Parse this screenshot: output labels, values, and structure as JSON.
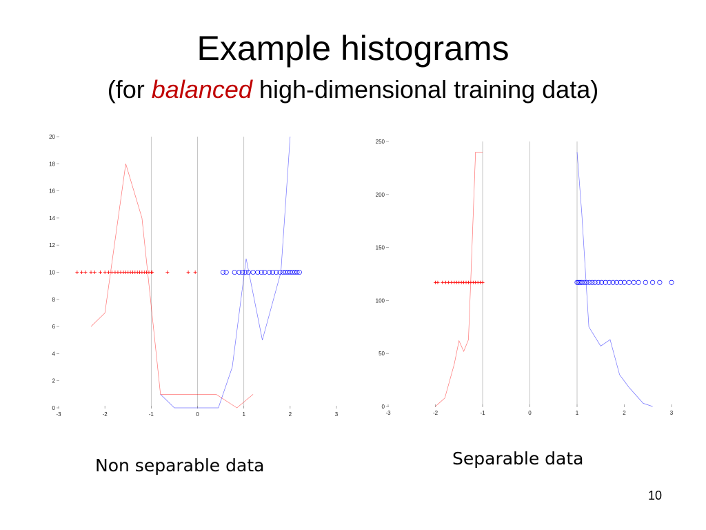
{
  "slide": {
    "title": "Example histograms",
    "subtitle_open": "(for ",
    "subtitle_emph": "balanced",
    "subtitle_rest": " high-dimensional training data)",
    "page_number": "10"
  },
  "captions": {
    "left": "Non separable data",
    "right": "Separable data"
  },
  "colors": {
    "red": "#ff0000",
    "blue": "#0000ff",
    "axis": "#888888"
  },
  "chart_data": [
    {
      "type": "line",
      "title": "",
      "xlabel": "",
      "ylabel": "",
      "xlim": [
        -3,
        3
      ],
      "ylim": [
        0,
        20
      ],
      "xticks": [
        -3,
        -2,
        -1,
        0,
        1,
        2,
        3
      ],
      "yticks": [
        0,
        2,
        4,
        6,
        8,
        10,
        12,
        14,
        16,
        18,
        20
      ],
      "vlines": [
        -1,
        0,
        1
      ],
      "series": [
        {
          "color": "red",
          "x": [
            -2.3,
            -2.0,
            -1.55,
            -1.2,
            -0.8,
            -0.4,
            0.0,
            0.4,
            0.85,
            1.2
          ],
          "y": [
            6,
            7,
            18,
            14,
            1,
            1,
            1,
            1,
            0,
            1
          ]
        },
        {
          "color": "blue",
          "x": [
            -0.8,
            -0.5,
            0.0,
            0.45,
            0.75,
            1.05,
            1.4,
            1.8,
            2.0
          ],
          "y": [
            1,
            0,
            0,
            0,
            3,
            11,
            5,
            10,
            20
          ]
        }
      ],
      "points_y": 10,
      "red_points": [
        -2.6,
        -2.5,
        -2.42,
        -2.3,
        -2.22,
        -2.1,
        -2.0,
        -1.92,
        -1.85,
        -1.78,
        -1.72,
        -1.66,
        -1.6,
        -1.55,
        -1.5,
        -1.45,
        -1.4,
        -1.35,
        -1.3,
        -1.25,
        -1.2,
        -1.15,
        -1.1,
        -1.05,
        -1.0,
        -0.98,
        -0.65,
        -0.2,
        -0.05
      ],
      "blue_points": [
        0.55,
        0.62,
        0.8,
        0.9,
        0.97,
        1.03,
        1.1,
        1.2,
        1.3,
        1.38,
        1.45,
        1.55,
        1.62,
        1.7,
        1.78,
        1.85,
        1.9,
        1.95,
        2.0,
        2.05,
        2.1,
        2.15,
        2.2
      ]
    },
    {
      "type": "line",
      "title": "",
      "xlabel": "",
      "ylabel": "",
      "xlim": [
        -3,
        3
      ],
      "ylim": [
        0,
        250
      ],
      "xticks": [
        -3,
        -2,
        -1,
        0,
        1,
        2,
        3
      ],
      "yticks": [
        0,
        50,
        100,
        150,
        200,
        250
      ],
      "vlines": [
        -1,
        0,
        1
      ],
      "series": [
        {
          "color": "red",
          "x": [
            -2.0,
            -1.8,
            -1.6,
            -1.5,
            -1.4,
            -1.3,
            -1.25,
            -1.15,
            -1.0
          ],
          "y": [
            0,
            8,
            40,
            62,
            52,
            63,
            120,
            240,
            240
          ]
        },
        {
          "color": "blue",
          "x": [
            1.0,
            1.1,
            1.25,
            1.5,
            1.7,
            1.9,
            2.1,
            2.4,
            2.6
          ],
          "y": [
            240,
            182,
            75,
            57,
            63,
            30,
            18,
            3,
            0
          ]
        }
      ],
      "points_y": 117,
      "red_points": [
        -2.0,
        -1.95,
        -1.85,
        -1.78,
        -1.72,
        -1.66,
        -1.6,
        -1.55,
        -1.5,
        -1.45,
        -1.4,
        -1.35,
        -1.3,
        -1.25,
        -1.2,
        -1.15,
        -1.1,
        -1.05,
        -1.0
      ],
      "blue_points": [
        1.0,
        1.03,
        1.06,
        1.1,
        1.15,
        1.2,
        1.26,
        1.32,
        1.38,
        1.45,
        1.52,
        1.6,
        1.68,
        1.76,
        1.84,
        1.92,
        2.0,
        2.1,
        2.2,
        2.3,
        2.45,
        2.6,
        2.75,
        3.0
      ]
    }
  ]
}
